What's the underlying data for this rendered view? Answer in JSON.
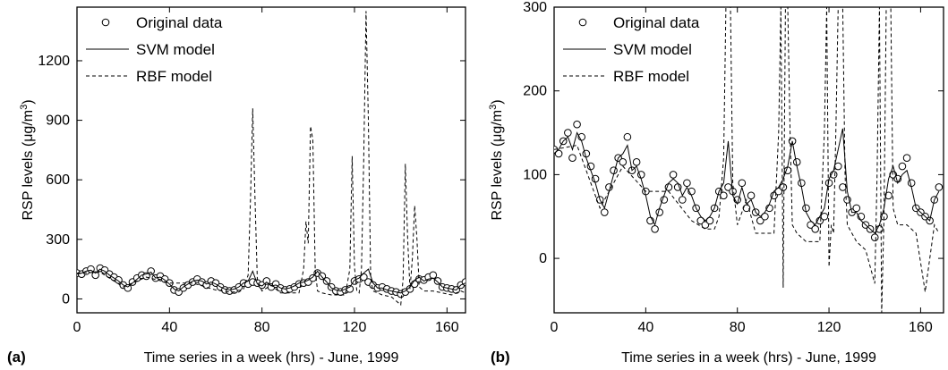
{
  "chart_data": [
    {
      "panel": "(a)",
      "type": "line",
      "xlabel": "Time series in a week (hrs) - June, 1999",
      "ylabel": "RSP levels (μg/m³)",
      "xlim": [
        0,
        168
      ],
      "ylim": [
        -70,
        1470
      ],
      "xticks": [
        0,
        40,
        80,
        120,
        160
      ],
      "yticks": [
        0,
        300,
        600,
        900,
        1200
      ],
      "legend_position": "top-left",
      "legend": [
        "Original data",
        "SVM model",
        "RBF model"
      ],
      "series": [
        {
          "name": "Original data",
          "style": "circles",
          "x": [
            0,
            2,
            4,
            6,
            8,
            10,
            12,
            14,
            16,
            18,
            20,
            22,
            24,
            26,
            28,
            30,
            32,
            34,
            36,
            38,
            40,
            42,
            44,
            46,
            48,
            50,
            52,
            54,
            56,
            58,
            60,
            62,
            64,
            66,
            68,
            70,
            72,
            74,
            76,
            78,
            80,
            82,
            84,
            86,
            88,
            90,
            92,
            94,
            96,
            98,
            100,
            102,
            104,
            106,
            108,
            110,
            112,
            114,
            116,
            118,
            120,
            122,
            124,
            126,
            128,
            130,
            132,
            134,
            136,
            138,
            140,
            142,
            144,
            146,
            148,
            150,
            152,
            154,
            156,
            158,
            160,
            162,
            164,
            166,
            168
          ],
          "values": [
            130,
            125,
            140,
            150,
            120,
            155,
            145,
            125,
            110,
            95,
            70,
            55,
            85,
            105,
            120,
            115,
            140,
            105,
            115,
            100,
            80,
            45,
            35,
            55,
            70,
            85,
            100,
            85,
            70,
            90,
            80,
            60,
            45,
            40,
            45,
            60,
            80,
            75,
            85,
            80,
            70,
            90,
            60,
            75,
            55,
            45,
            50,
            60,
            75,
            80,
            85,
            105,
            130,
            115,
            90,
            60,
            40,
            35,
            45,
            50,
            90,
            100,
            110,
            85,
            70,
            55,
            60,
            50,
            40,
            35,
            25,
            35,
            50,
            75,
            100,
            95,
            110,
            120,
            90,
            60,
            55,
            50,
            45,
            70,
            85
          ]
        },
        {
          "name": "SVM model",
          "style": "solid",
          "x": [
            0,
            2,
            4,
            6,
            8,
            10,
            12,
            14,
            16,
            18,
            20,
            22,
            24,
            26,
            28,
            30,
            32,
            34,
            36,
            38,
            40,
            42,
            44,
            46,
            48,
            50,
            52,
            54,
            56,
            58,
            60,
            62,
            64,
            66,
            68,
            70,
            72,
            74,
            76,
            78,
            80,
            82,
            84,
            86,
            88,
            90,
            92,
            94,
            96,
            98,
            100,
            102,
            104,
            106,
            108,
            110,
            112,
            114,
            116,
            118,
            120,
            122,
            124,
            126,
            128,
            130,
            132,
            134,
            136,
            138,
            140,
            142,
            144,
            146,
            148,
            150,
            152,
            154,
            156,
            158,
            160,
            162,
            164,
            166,
            168
          ],
          "values": [
            125,
            130,
            140,
            145,
            130,
            150,
            140,
            120,
            105,
            90,
            70,
            60,
            80,
            100,
            120,
            125,
            135,
            105,
            110,
            95,
            75,
            50,
            40,
            60,
            75,
            90,
            95,
            90,
            75,
            85,
            75,
            60,
            50,
            45,
            50,
            60,
            80,
            90,
            140,
            75,
            65,
            85,
            65,
            70,
            55,
            50,
            55,
            65,
            80,
            85,
            95,
            110,
            140,
            110,
            85,
            55,
            45,
            40,
            50,
            60,
            95,
            105,
            130,
            150,
            80,
            55,
            55,
            45,
            40,
            35,
            30,
            40,
            60,
            95,
            110,
            90,
            100,
            105,
            85,
            60,
            55,
            50,
            45,
            70,
            80
          ]
        },
        {
          "name": "RBF model",
          "style": "dashed",
          "x": [
            0,
            10,
            20,
            30,
            40,
            50,
            60,
            66,
            70,
            72,
            74,
            75,
            76,
            77,
            78,
            80,
            84,
            88,
            92,
            96,
            98,
            99,
            100,
            101,
            102,
            103,
            104,
            106,
            110,
            116,
            118,
            119,
            120,
            121,
            122,
            123,
            124,
            125,
            126,
            127,
            128,
            132,
            136,
            140,
            141,
            142,
            143,
            144,
            145,
            146,
            147,
            148,
            150,
            154,
            158,
            162,
            166,
            168
          ],
          "values": [
            130,
            135,
            60,
            110,
            80,
            80,
            45,
            35,
            35,
            50,
            120,
            500,
            960,
            500,
            90,
            40,
            70,
            30,
            30,
            30,
            150,
            390,
            280,
            870,
            800,
            150,
            40,
            30,
            20,
            20,
            150,
            720,
            160,
            40,
            30,
            150,
            700,
            1450,
            900,
            100,
            40,
            20,
            10,
            -30,
            100,
            680,
            300,
            50,
            200,
            470,
            300,
            60,
            40,
            40,
            30,
            20,
            40,
            30
          ]
        }
      ]
    },
    {
      "panel": "(b)",
      "type": "line",
      "xlabel": "Time series in a week (hrs) - June, 1999",
      "ylabel": "RSP levels (μg/m³)",
      "xlim": [
        0,
        170
      ],
      "ylim": [
        -65,
        300
      ],
      "xticks": [
        0,
        40,
        80,
        120,
        160
      ],
      "yticks": [
        0,
        100,
        200,
        300
      ],
      "legend_position": "top-left",
      "legend": [
        "Original data",
        "SVM model",
        "RBF model"
      ],
      "series": [
        {
          "name": "Original data",
          "style": "circles",
          "x": [
            0,
            2,
            4,
            6,
            8,
            10,
            12,
            14,
            16,
            18,
            20,
            22,
            24,
            26,
            28,
            30,
            32,
            34,
            36,
            38,
            40,
            42,
            44,
            46,
            48,
            50,
            52,
            54,
            56,
            58,
            60,
            62,
            64,
            66,
            68,
            70,
            72,
            74,
            76,
            78,
            80,
            82,
            84,
            86,
            88,
            90,
            92,
            94,
            96,
            98,
            100,
            102,
            104,
            106,
            108,
            110,
            112,
            114,
            116,
            118,
            120,
            122,
            124,
            126,
            128,
            130,
            132,
            134,
            136,
            138,
            140,
            142,
            144,
            146,
            148,
            150,
            152,
            154,
            156,
            158,
            160,
            162,
            164,
            166,
            168
          ],
          "values": [
            130,
            125,
            140,
            150,
            120,
            160,
            145,
            125,
            110,
            95,
            70,
            55,
            85,
            105,
            120,
            115,
            145,
            105,
            115,
            100,
            80,
            45,
            35,
            55,
            70,
            85,
            100,
            85,
            70,
            90,
            80,
            60,
            45,
            40,
            45,
            60,
            80,
            75,
            85,
            80,
            70,
            90,
            60,
            75,
            55,
            45,
            50,
            60,
            75,
            80,
            85,
            105,
            140,
            115,
            90,
            60,
            40,
            35,
            45,
            50,
            90,
            100,
            110,
            85,
            70,
            55,
            60,
            50,
            40,
            35,
            25,
            35,
            50,
            75,
            100,
            95,
            110,
            120,
            90,
            60,
            55,
            50,
            45,
            70,
            85
          ]
        },
        {
          "name": "SVM model",
          "style": "solid",
          "x": [
            0,
            2,
            4,
            6,
            8,
            10,
            12,
            14,
            16,
            18,
            20,
            22,
            24,
            26,
            28,
            30,
            32,
            34,
            36,
            38,
            40,
            42,
            44,
            46,
            48,
            50,
            52,
            54,
            56,
            58,
            60,
            62,
            64,
            66,
            68,
            70,
            72,
            74,
            76,
            78,
            80,
            82,
            84,
            86,
            88,
            90,
            92,
            94,
            96,
            98,
            100,
            102,
            104,
            106,
            108,
            110,
            112,
            114,
            116,
            118,
            120,
            122,
            124,
            126,
            128,
            130,
            132,
            134,
            136,
            138,
            140,
            142,
            144,
            146,
            148,
            150,
            152,
            154,
            156,
            158,
            160,
            162,
            164,
            166,
            168
          ],
          "values": [
            125,
            130,
            140,
            145,
            130,
            150,
            140,
            120,
            105,
            90,
            70,
            60,
            80,
            100,
            120,
            125,
            135,
            105,
            110,
            95,
            75,
            50,
            40,
            60,
            75,
            90,
            95,
            90,
            75,
            85,
            75,
            60,
            50,
            45,
            50,
            60,
            80,
            90,
            140,
            75,
            65,
            85,
            65,
            70,
            55,
            50,
            55,
            65,
            80,
            85,
            95,
            110,
            140,
            110,
            85,
            55,
            45,
            40,
            50,
            60,
            95,
            105,
            130,
            155,
            80,
            55,
            55,
            45,
            40,
            35,
            30,
            40,
            60,
            95,
            110,
            90,
            100,
            105,
            85,
            60,
            55,
            50,
            45,
            70,
            80
          ]
        },
        {
          "name": "RBF model",
          "style": "dashed",
          "x": [
            0,
            10,
            20,
            30,
            40,
            50,
            60,
            66,
            70,
            72,
            74,
            75,
            76,
            77,
            78,
            80,
            84,
            88,
            92,
            96,
            98,
            99,
            100,
            101,
            102,
            103,
            104,
            106,
            110,
            116,
            118,
            119,
            120,
            121,
            122,
            123,
            124,
            125,
            126,
            127,
            128,
            132,
            136,
            140,
            141,
            142,
            143,
            144,
            145,
            146,
            147,
            148,
            150,
            154,
            158,
            162,
            166,
            168
          ],
          "values": [
            130,
            135,
            60,
            110,
            80,
            80,
            45,
            35,
            35,
            50,
            120,
            300,
            300,
            300,
            90,
            40,
            70,
            30,
            30,
            30,
            150,
            300,
            -35,
            300,
            300,
            150,
            40,
            30,
            20,
            20,
            150,
            300,
            -10,
            40,
            30,
            150,
            300,
            300,
            300,
            100,
            40,
            20,
            10,
            -30,
            100,
            300,
            -65,
            50,
            300,
            300,
            300,
            60,
            40,
            40,
            30,
            -40,
            40,
            30
          ]
        }
      ]
    }
  ]
}
